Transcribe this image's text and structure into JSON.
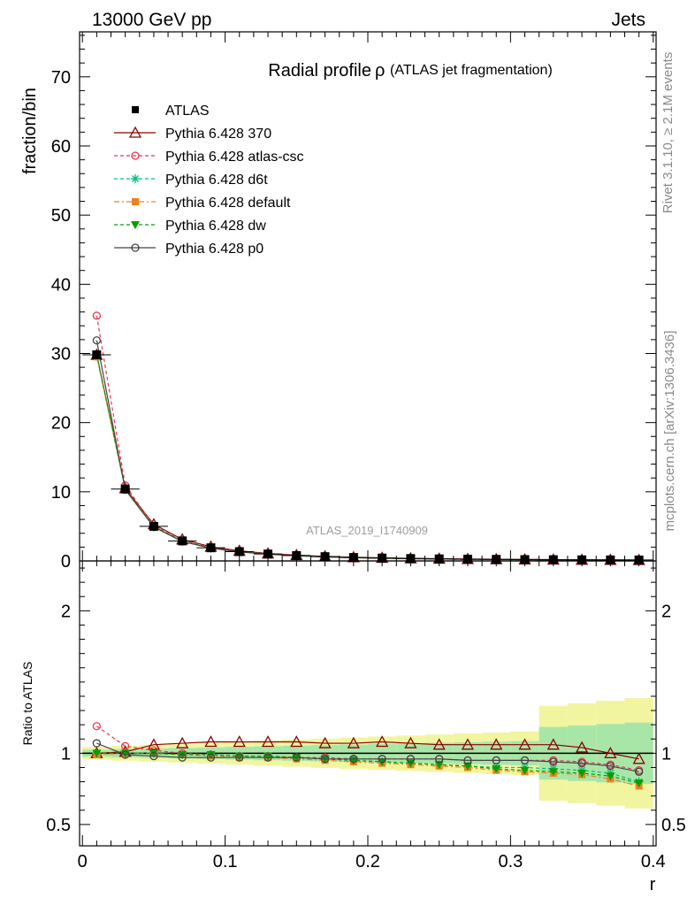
{
  "header": {
    "left": "13000 GeV pp",
    "right": "Jets"
  },
  "side": {
    "rivet": "Rivet 3.1.10, ≥ 2.1M events",
    "mcplots": "mcplots.cern.ch [arXiv:1306.3436]"
  },
  "chart_data": {
    "type": "line",
    "title": "Radial profile",
    "title_symbol": "ρ",
    "title_suffix": "(ATLAS jet fragmentation)",
    "watermark": "ATLAS_2019_I1740909",
    "xlabel": "r",
    "ylabel": "fraction/bin",
    "ratio_ylabel": "Ratio to ATLAS",
    "xlim": [
      -0.002,
      0.402
    ],
    "ylim": [
      0,
      76.5
    ],
    "ratio_ylim": [
      0.35,
      2.35
    ],
    "x_ticks": [
      "0",
      "0.1",
      "0.2",
      "0.3",
      "0.4"
    ],
    "y_ticks": [
      "0",
      "10",
      "20",
      "30",
      "40",
      "50",
      "60",
      "70"
    ],
    "ratio_ticks": [
      "0.5",
      "1",
      "2"
    ],
    "x": [
      0.01,
      0.03,
      0.05,
      0.07,
      0.09,
      0.11,
      0.13,
      0.15,
      0.17,
      0.19,
      0.21,
      0.23,
      0.25,
      0.27,
      0.29,
      0.31,
      0.33,
      0.35,
      0.37,
      0.39
    ],
    "data": {
      "name": "ATLAS",
      "values": [
        29.8,
        10.4,
        5.0,
        2.9,
        1.9,
        1.35,
        1.0,
        0.78,
        0.62,
        0.5,
        0.42,
        0.35,
        0.3,
        0.26,
        0.23,
        0.2,
        0.18,
        0.16,
        0.15,
        0.14
      ]
    },
    "series": [
      {
        "name": "Pythia 6.428 370",
        "color": "#8b0000",
        "marker": "triangle",
        "dash": "",
        "ratio": [
          1.0,
          1.01,
          1.06,
          1.07,
          1.08,
          1.08,
          1.08,
          1.08,
          1.07,
          1.07,
          1.08,
          1.07,
          1.06,
          1.06,
          1.06,
          1.06,
          1.06,
          1.04,
          1.0,
          0.96
        ]
      },
      {
        "name": "Pythia 6.428 atlas-csc",
        "color": "#ee3355",
        "marker": "circle",
        "dash": "4,3",
        "ratio": [
          1.19,
          1.05,
          1.02,
          1.0,
          0.99,
          0.98,
          0.98,
          0.97,
          0.97,
          0.96,
          0.96,
          0.96,
          0.96,
          0.95,
          0.95,
          0.95,
          0.95,
          0.94,
          0.92,
          0.88
        ]
      },
      {
        "name": "Pythia 6.428 d6t",
        "color": "#00c080",
        "marker": "star",
        "dash": "4,3",
        "ratio": [
          1.0,
          1.0,
          1.0,
          0.99,
          0.99,
          0.98,
          0.98,
          0.97,
          0.96,
          0.95,
          0.94,
          0.93,
          0.92,
          0.91,
          0.9,
          0.9,
          0.89,
          0.88,
          0.86,
          0.8
        ]
      },
      {
        "name": "Pythia 6.428 default",
        "color": "#f08020",
        "marker": "square",
        "dash": "6,3,2,3",
        "ratio": [
          0.99,
          1.0,
          1.0,
          0.99,
          0.98,
          0.97,
          0.97,
          0.96,
          0.95,
          0.94,
          0.93,
          0.92,
          0.91,
          0.9,
          0.88,
          0.87,
          0.86,
          0.85,
          0.82,
          0.77
        ]
      },
      {
        "name": "Pythia 6.428 dw",
        "color": "#00a000",
        "marker": "triangle-down",
        "dash": "4,3",
        "ratio": [
          1.0,
          1.0,
          1.0,
          0.99,
          0.99,
          0.98,
          0.98,
          0.97,
          0.96,
          0.95,
          0.94,
          0.93,
          0.92,
          0.91,
          0.89,
          0.88,
          0.87,
          0.86,
          0.84,
          0.79
        ]
      },
      {
        "name": "Pythia 6.428 p0",
        "color": "#444444",
        "marker": "circle",
        "dash": "",
        "ratio": [
          1.07,
          0.99,
          0.98,
          0.97,
          0.97,
          0.97,
          0.97,
          0.97,
          0.96,
          0.96,
          0.96,
          0.96,
          0.96,
          0.95,
          0.95,
          0.95,
          0.94,
          0.93,
          0.91,
          0.87
        ]
      }
    ]
  }
}
